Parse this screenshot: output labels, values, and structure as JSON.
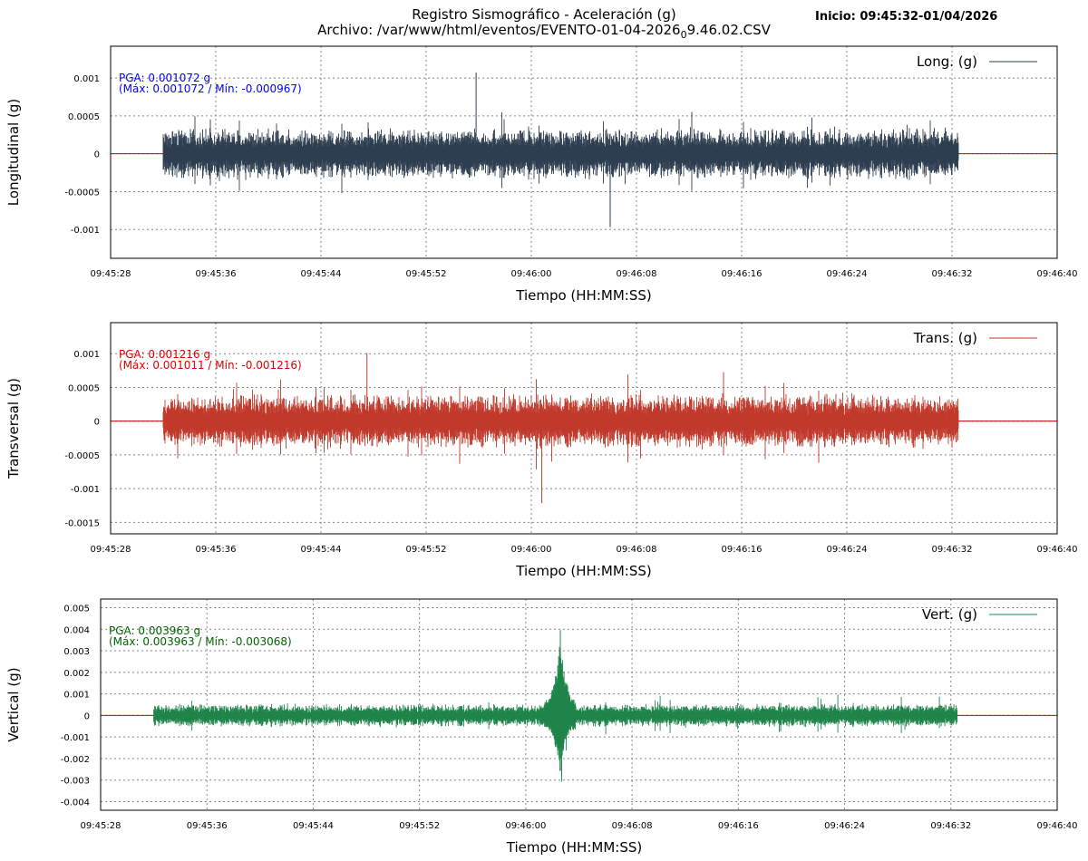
{
  "header": {
    "title_line1": "Registro Sismográfico - Aceleración (g)",
    "file_prefix": "Archivo: /var/www/html/eventos/EVENTO-01-04-2026",
    "file_subscript": "0",
    "file_suffix": "9.46.02.CSV",
    "start": "Inicio: 09:45:32-01/04/2026"
  },
  "colors": {
    "longitudinal": "#2d3e50",
    "transversal": "#c0392b",
    "vertical": "#1e8449",
    "baseline": "#d00000",
    "grid": "#888888",
    "pga_long": "#0000ff",
    "pga_trans": "#e00000",
    "pga_vert": "#006400"
  },
  "chart_data": [
    {
      "type": "line",
      "key": "long",
      "ylabel": "Longitudinal (g)",
      "xlabel": "Tiempo (HH:MM:SS)",
      "legend": "Long. (g)",
      "legend_position": "top-right",
      "grid": true,
      "xlim": [
        "09:45:28",
        "09:46:40"
      ],
      "x_ticks": [
        "09:45:28",
        "09:45:36",
        "09:45:44",
        "09:45:52",
        "09:46:00",
        "09:46:08",
        "09:46:16",
        "09:46:24",
        "09:46:32",
        "09:46:40"
      ],
      "ylim": [
        -0.00138,
        0.00142
      ],
      "y_ticks": [
        0.001,
        0.0005,
        0,
        -0.0005,
        -0.001
      ],
      "y_tick_labels": [
        "0.001",
        "0.0005",
        "0",
        "-0.0005",
        "-0.001"
      ],
      "signal_start": "09:45:32",
      "signal_end": "09:46:32.5",
      "typical_amplitude": 0.00035,
      "peaks": [
        {
          "t": "09:45:55.8",
          "value": 0.001072
        },
        {
          "t": "09:46:06.0",
          "value": -0.000967
        }
      ],
      "pga_text": "PGA: 0.001072 g",
      "minmax_text": "(Máx: 0.001072 / Mín: -0.000967)"
    },
    {
      "type": "line",
      "key": "trans",
      "ylabel": "Transversal (g)",
      "xlabel": "Tiempo (HH:MM:SS)",
      "legend": "Trans. (g)",
      "legend_position": "top-right",
      "grid": true,
      "xlim": [
        "09:45:28",
        "09:46:40"
      ],
      "x_ticks": [
        "09:45:28",
        "09:45:36",
        "09:45:44",
        "09:45:52",
        "09:46:00",
        "09:46:08",
        "09:46:16",
        "09:46:24",
        "09:46:32",
        "09:46:40"
      ],
      "ylim": [
        -0.00167,
        0.00146
      ],
      "y_ticks": [
        0.001,
        0.0005,
        0,
        -0.0005,
        -0.001,
        -0.0015
      ],
      "y_tick_labels": [
        "0.001",
        "0.0005",
        "0",
        "-0.0005",
        "-0.001",
        "-0.0015"
      ],
      "signal_start": "09:45:32",
      "signal_end": "09:46:32.5",
      "typical_amplitude": 0.00042,
      "peaks": [
        {
          "t": "09:46:00.8",
          "value": -0.001216
        },
        {
          "t": "09:45:47.5",
          "value": 0.001011
        }
      ],
      "pga_text": "PGA: 0.001216 g",
      "minmax_text": "(Máx: 0.001011 / Mín: -0.001216)"
    },
    {
      "type": "line",
      "key": "vert",
      "ylabel": "Vertical (g)",
      "xlabel": "Tiempo (HH:MM:SS)",
      "legend": "Vert. (g)",
      "legend_position": "top-right",
      "grid": true,
      "xlim": [
        "09:45:28",
        "09:46:40"
      ],
      "x_ticks": [
        "09:45:28",
        "09:45:36",
        "09:45:44",
        "09:45:52",
        "09:46:00",
        "09:46:08",
        "09:46:16",
        "09:46:24",
        "09:46:32",
        "09:46:40"
      ],
      "ylim": [
        -0.0044,
        0.0054
      ],
      "y_ticks": [
        0.005,
        0.004,
        0.003,
        0.002,
        0.001,
        0,
        -0.001,
        -0.002,
        -0.003,
        -0.004
      ],
      "y_tick_labels": [
        "0.005",
        "0.004",
        "0.003",
        "0.002",
        "0.001",
        "0",
        "-0.001",
        "-0.002",
        "-0.003",
        "-0.004"
      ],
      "signal_start": "09:45:32",
      "signal_end": "09:46:32.5",
      "typical_amplitude": 0.00055,
      "burst": {
        "t": "09:46:02.6",
        "value": 0.003963,
        "min": -0.003068
      },
      "peaks": [
        {
          "t": "09:46:02.6",
          "value": 0.003963
        },
        {
          "t": "09:46:02.7",
          "value": -0.003068
        }
      ],
      "pga_text": "PGA: 0.003963 g",
      "minmax_text": "(Máx: 0.003963 / Mín: -0.003068)"
    }
  ]
}
